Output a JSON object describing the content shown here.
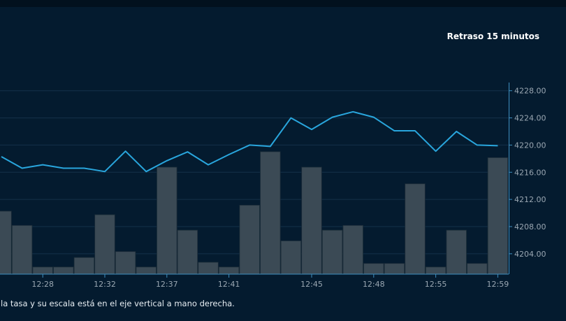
{
  "header": {
    "delay_text": "Retraso 15 minutos"
  },
  "footer": {
    "note_text": "la tasa y su escala está en el eje vertical a mano derecha."
  },
  "colors": {
    "background": "#041b2f",
    "line": "#29a6dd",
    "bars": "#3b4a55",
    "grid": "#15324a",
    "axis": "#3f8fbf",
    "tick_text": "#9aa7b2"
  },
  "chart_data": {
    "type": "line",
    "price_axis": {
      "position": "right",
      "range": [
        4201,
        4229
      ],
      "ticks": [
        4204,
        4208,
        4212,
        4216,
        4220,
        4224,
        4228
      ],
      "tick_labels": [
        "4204.00",
        "4208.00",
        "4212.00",
        "4216.00",
        "4220.00",
        "4224.00",
        "4228.00"
      ]
    },
    "x_tick_labels": [
      "12:28",
      "12:32",
      "12:37",
      "12:41",
      "12:45",
      "12:48",
      "12:55",
      "12:59"
    ],
    "price_series": [
      4218.3,
      4216.6,
      4217.1,
      4216.6,
      4216.6,
      4216.1,
      4219.1,
      4216.1,
      4217.7,
      4219.0,
      4217.1,
      4218.6,
      4220.0,
      4219.8,
      4224.0,
      4222.3,
      4224.1,
      4224.9,
      4224.1,
      4222.1,
      4222.1,
      4219.1,
      4222.0,
      4220.0,
      4219.9
    ],
    "volume_series": [
      5.3,
      4.1,
      0.6,
      0.6,
      1.4,
      5.0,
      1.9,
      0.6,
      9.0,
      3.7,
      1.0,
      0.6,
      5.8,
      10.3,
      2.8,
      9.0,
      3.7,
      4.1,
      0.9,
      0.9,
      7.6,
      0.6,
      3.7,
      0.9,
      9.8
    ],
    "volume_axis_max": 16
  }
}
